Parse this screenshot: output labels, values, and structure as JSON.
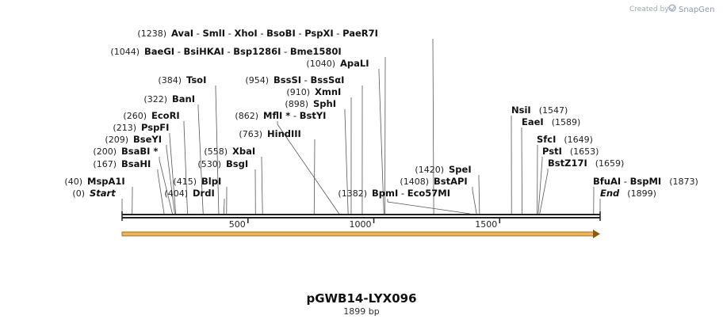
{
  "credit": {
    "prefix": "Created by",
    "brand": "SnapGene"
  },
  "sequence": {
    "name": "pGWB14-LYX096",
    "length_label": "1899 bp",
    "length": 1899
  },
  "scale": {
    "ticks": [
      500,
      1000,
      1500
    ],
    "tick_labels": [
      "500",
      "1000",
      "1500"
    ]
  },
  "sites": [
    {
      "group": "1238",
      "pos": 1238,
      "pos_label": "(1238)",
      "names": [
        "AvaI",
        "SmlI",
        "XhoI",
        "BsoBI",
        "PspXI",
        "PaeR7I"
      ]
    },
    {
      "group": "1044",
      "pos": 1044,
      "pos_label": "(1044)",
      "names": [
        "BaeGI",
        "BsiHKAI",
        "Bsp1286I",
        "Bme1580I"
      ]
    },
    {
      "group": "1040",
      "pos": 1040,
      "pos_label": "(1040)",
      "names": [
        "ApaLI"
      ]
    },
    {
      "group": "384",
      "pos": 384,
      "pos_label": "(384)",
      "names": [
        "TsoI"
      ]
    },
    {
      "group": "954",
      "pos": 954,
      "pos_label": "(954)",
      "names": [
        "BssSI",
        "BssSαI"
      ]
    },
    {
      "group": "910",
      "pos": 910,
      "pos_label": "(910)",
      "names": [
        "XmnI"
      ]
    },
    {
      "group": "322",
      "pos": 322,
      "pos_label": "(322)",
      "names": [
        "BanI"
      ]
    },
    {
      "group": "898",
      "pos": 898,
      "pos_label": "(898)",
      "names": [
        "SphI"
      ]
    },
    {
      "group": "260",
      "pos": 260,
      "pos_label": "(260)",
      "names": [
        "EcoRI"
      ]
    },
    {
      "group": "862",
      "pos": 862,
      "pos_label": "(862)",
      "names": [
        "MflI *",
        "BstYI"
      ]
    },
    {
      "group": "213",
      "pos": 213,
      "pos_label": "(213)",
      "names": [
        "PspFI"
      ]
    },
    {
      "group": "763",
      "pos": 763,
      "pos_label": "(763)",
      "names": [
        "HindIII"
      ]
    },
    {
      "group": "209",
      "pos": 209,
      "pos_label": "(209)",
      "names": [
        "BseYI"
      ]
    },
    {
      "group": "200",
      "pos": 200,
      "pos_label": "(200)",
      "names": [
        "BsaBI *"
      ]
    },
    {
      "group": "558",
      "pos": 558,
      "pos_label": "(558)",
      "names": [
        "XbaI"
      ]
    },
    {
      "group": "167",
      "pos": 167,
      "pos_label": "(167)",
      "names": [
        "BsaHI"
      ]
    },
    {
      "group": "530",
      "pos": 530,
      "pos_label": "(530)",
      "names": [
        "BsgI"
      ]
    },
    {
      "group": "1547",
      "pos": 1547,
      "pos_label": "(1547)",
      "names": [
        "NsiI"
      ]
    },
    {
      "group": "1589",
      "pos": 1589,
      "pos_label": "(1589)",
      "names": [
        "EaeI"
      ]
    },
    {
      "group": "1649",
      "pos": 1649,
      "pos_label": "(1649)",
      "names": [
        "SfcI"
      ]
    },
    {
      "group": "1653",
      "pos": 1653,
      "pos_label": "(1653)",
      "names": [
        "PstI"
      ]
    },
    {
      "group": "1659",
      "pos": 1659,
      "pos_label": "(1659)",
      "names": [
        "BstZ17I"
      ]
    },
    {
      "group": "1420",
      "pos": 1420,
      "pos_label": "(1420)",
      "names": [
        "SpeI"
      ]
    },
    {
      "group": "1408",
      "pos": 1408,
      "pos_label": "(1408)",
      "names": [
        "BstAPI"
      ]
    },
    {
      "group": "40",
      "pos": 40,
      "pos_label": "(40)",
      "names": [
        "MspA1I"
      ]
    },
    {
      "group": "415",
      "pos": 415,
      "pos_label": "(415)",
      "names": [
        "BlpI"
      ]
    },
    {
      "group": "404",
      "pos": 404,
      "pos_label": "(404)",
      "names": [
        "DrdI"
      ]
    },
    {
      "group": "1382",
      "pos": 1382,
      "pos_label": "(1382)",
      "names": [
        "BpmI",
        "Eco57MI"
      ]
    },
    {
      "group": "1873",
      "pos": 1873,
      "pos_label": "(1873)",
      "names": [
        "BfuAI",
        "BspMI"
      ]
    },
    {
      "group": "0",
      "pos": 0,
      "pos_label": "(0)",
      "names": [
        "Start"
      ]
    },
    {
      "group": "1899",
      "pos": 1899,
      "pos_label": "(1899)",
      "names": [
        "End"
      ]
    }
  ],
  "colors": {
    "backbone": "#222222",
    "feature_fill": "#f0b35a",
    "feature_stroke": "#8a5a10",
    "leader": "#555555"
  }
}
